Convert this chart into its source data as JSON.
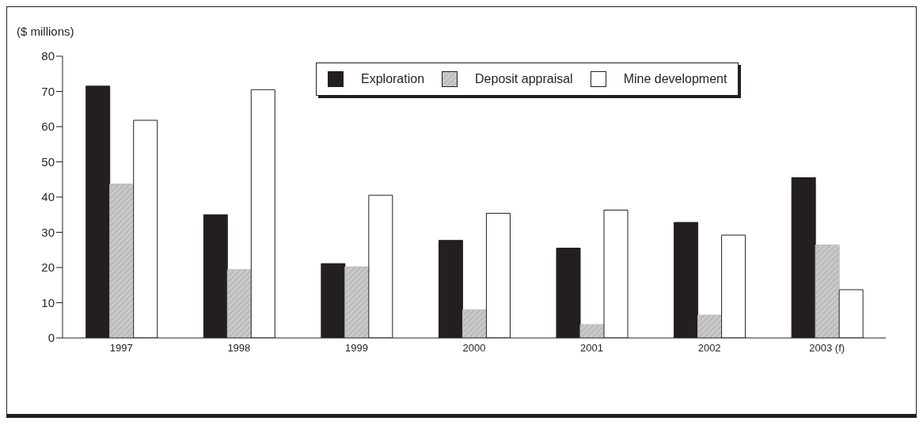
{
  "chart_data": {
    "type": "bar",
    "ylabel": "($ millions)",
    "categories": [
      "1997",
      "1998",
      "1999",
      "2000",
      "2001",
      "2002",
      "2003 (f)"
    ],
    "series": [
      {
        "name": "Exploration",
        "color": "#231f20",
        "values": [
          71.5,
          35,
          21.1,
          27.7,
          25.5,
          32.8,
          45.5
        ]
      },
      {
        "name": "Deposit appraisal",
        "color": "#bdbdbd",
        "values": [
          43.7,
          19.4,
          20.2,
          8,
          3.8,
          6.5,
          26.4
        ]
      },
      {
        "name": "Mine development",
        "color": "#ffffff",
        "values": [
          61.8,
          70.5,
          40.5,
          35.4,
          36.3,
          29.2,
          13.7
        ]
      }
    ],
    "ylim": [
      0,
      80
    ],
    "yticks": [
      0,
      10,
      20,
      30,
      40,
      50,
      60,
      70,
      80
    ],
    "grid": false,
    "legend": "top right"
  }
}
